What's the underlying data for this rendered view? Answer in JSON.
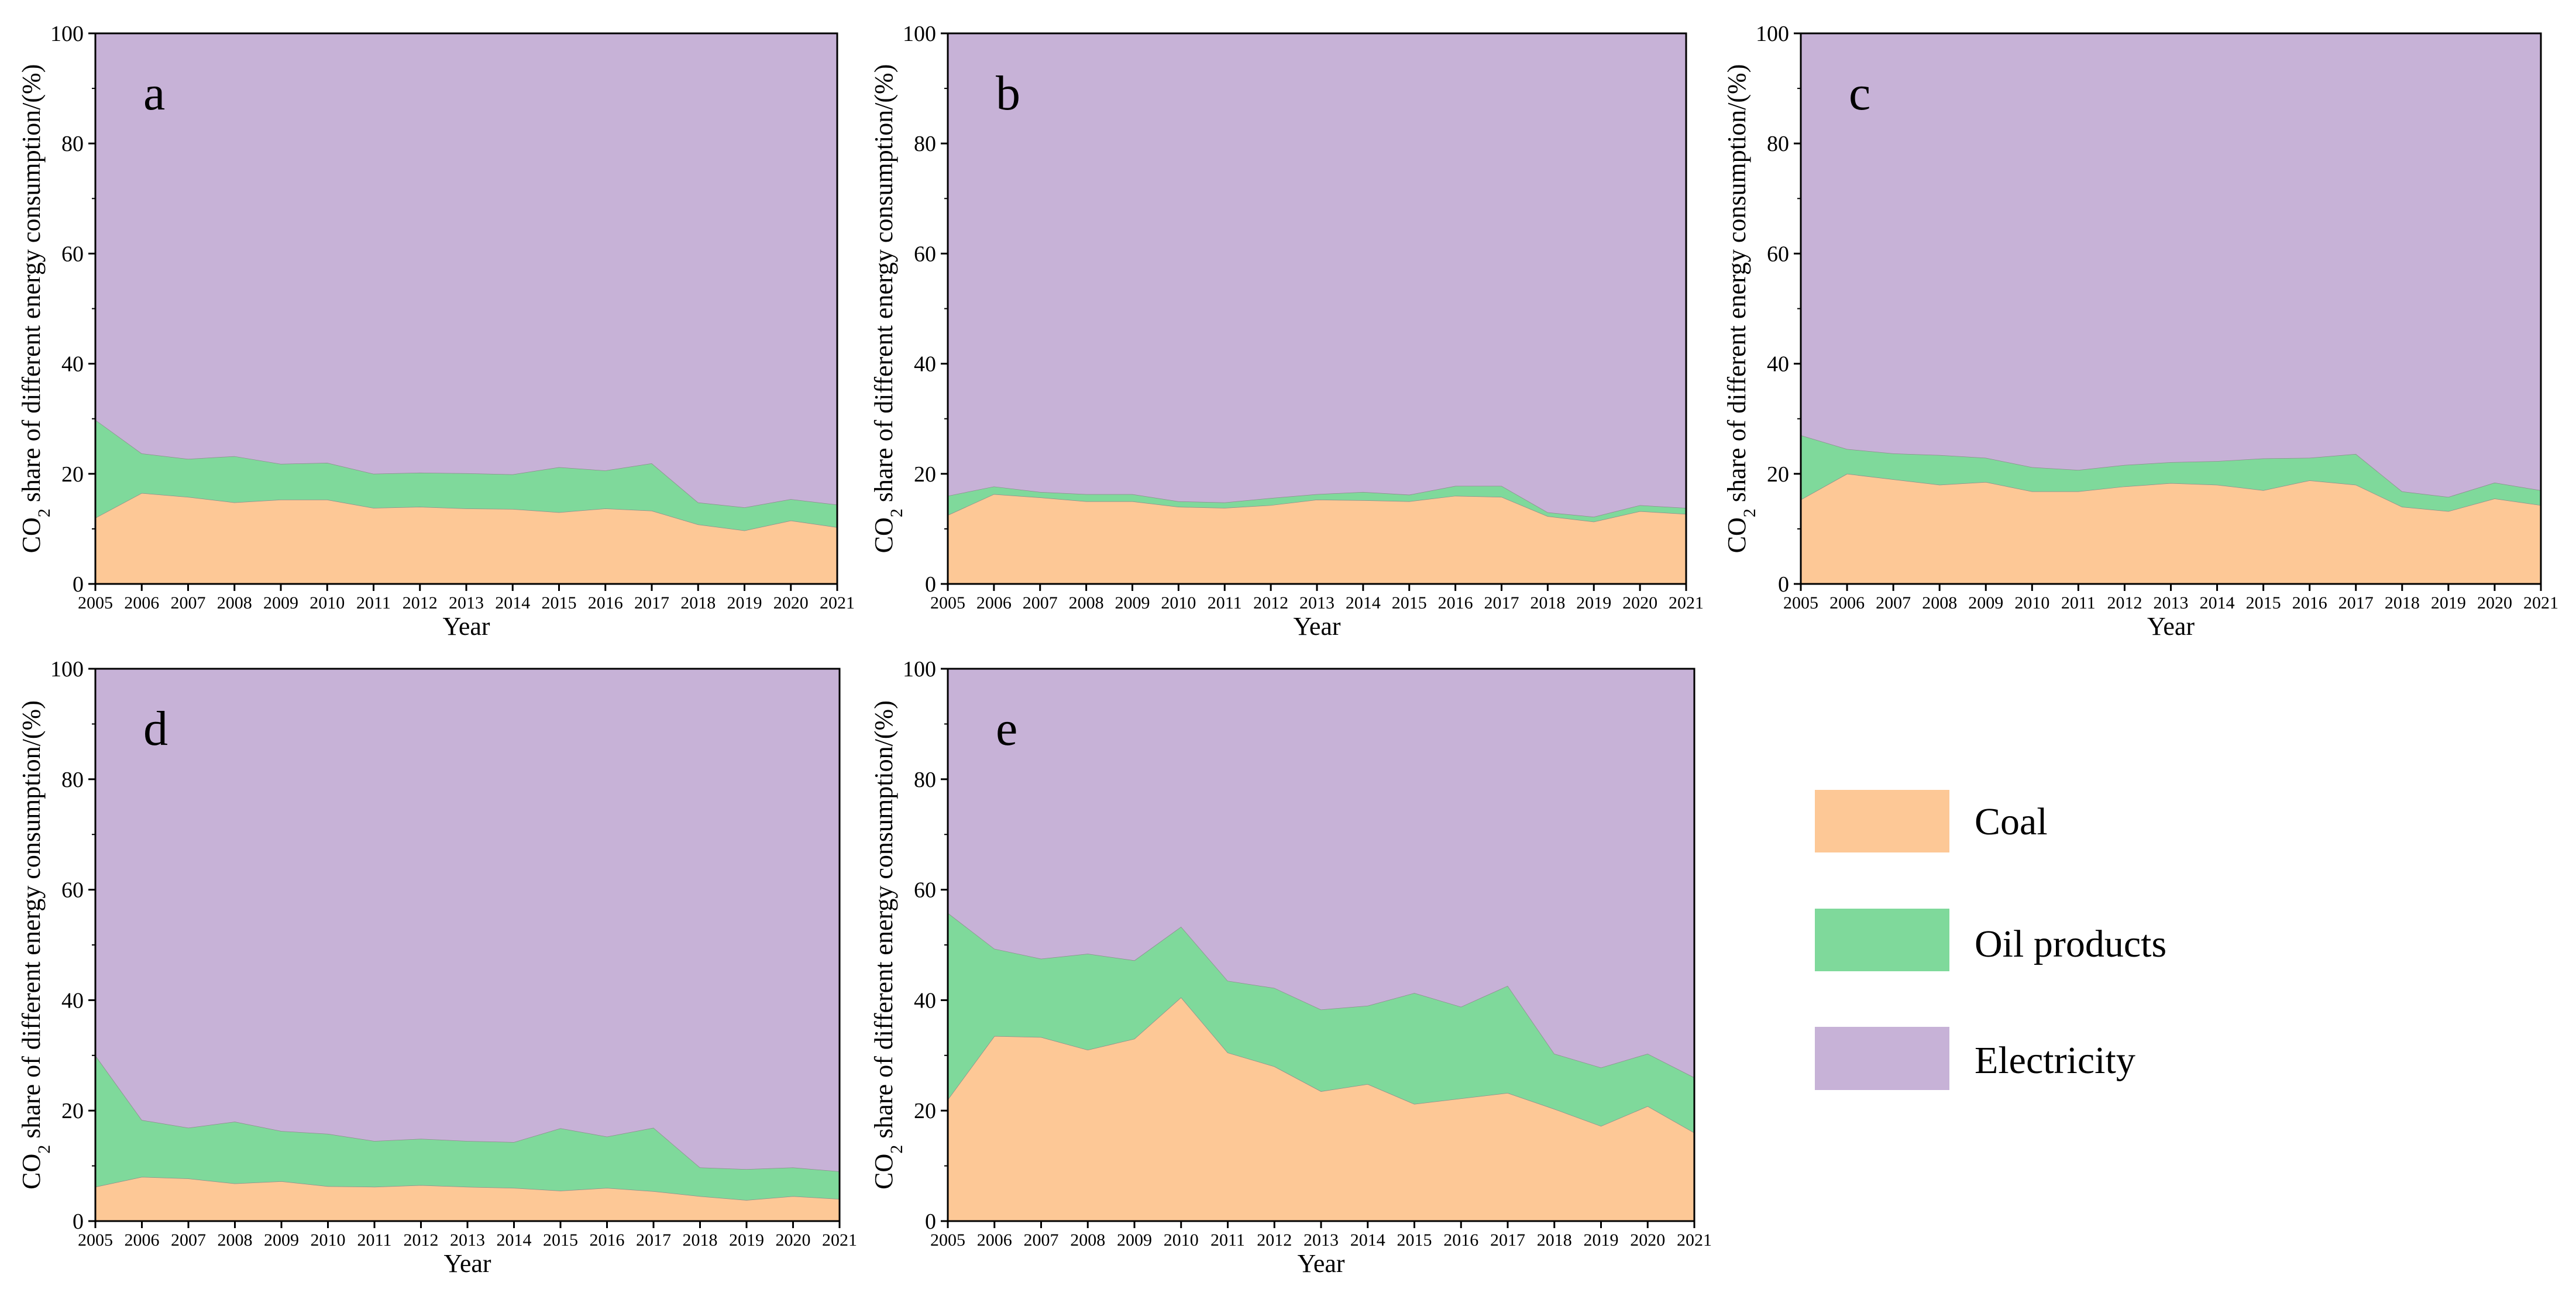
{
  "figure": {
    "legend": [
      {
        "key": "coal",
        "label": "Coal",
        "color": "#fdc896"
      },
      {
        "key": "oil",
        "label": "Oil products",
        "color": "#7fd99b"
      },
      {
        "key": "electricity",
        "label": "Electricity",
        "color": "#c7b2d7"
      }
    ]
  },
  "chart_data": [
    {
      "type": "area",
      "stacked": true,
      "panel_label": "a",
      "xlabel": "Year",
      "ylabel_prefix": "CO",
      "ylabel_sub": "2",
      "ylabel_suffix": " share of different energy consumption/(%)",
      "ylim": [
        0,
        100
      ],
      "yticks": [
        0,
        20,
        40,
        60,
        80,
        100
      ],
      "x": [
        "2005",
        "2006",
        "2007",
        "2008",
        "2009",
        "2010",
        "2011",
        "2012",
        "2013",
        "2014",
        "2015",
        "2016",
        "2017",
        "2018",
        "2019",
        "2020",
        "2021"
      ],
      "series": [
        {
          "name": "Coal",
          "values": [
            12,
            16.5,
            15.8,
            14.8,
            15.3,
            15.3,
            13.8,
            14,
            13.7,
            13.6,
            13,
            13.7,
            13.3,
            10.8,
            9.7,
            11.5,
            10.3
          ]
        },
        {
          "name": "Oil products",
          "values": [
            17.8,
            7.2,
            6.9,
            8.4,
            6.5,
            6.7,
            6.2,
            6.2,
            6.4,
            6.3,
            8.2,
            6.9,
            8.6,
            4,
            4.2,
            3.9,
            4.1
          ]
        },
        {
          "name": "Electricity",
          "values": [
            70.2,
            76.3,
            77.3,
            76.8,
            78.2,
            78,
            80,
            79.8,
            79.9,
            80.1,
            78.8,
            79.4,
            78.1,
            85.2,
            86.1,
            84.6,
            85.6
          ]
        }
      ]
    },
    {
      "type": "area",
      "stacked": true,
      "panel_label": "b",
      "xlabel": "Year",
      "ylabel_prefix": "CO",
      "ylabel_sub": "2",
      "ylabel_suffix": " share of different energy consumption/(%)",
      "ylim": [
        0,
        100
      ],
      "yticks": [
        0,
        20,
        40,
        60,
        80,
        100
      ],
      "x": [
        "2005",
        "2006",
        "2007",
        "2008",
        "2009",
        "2010",
        "2011",
        "2012",
        "2013",
        "2014",
        "2015",
        "2016",
        "2017",
        "2018",
        "2019",
        "2020",
        "2021"
      ],
      "series": [
        {
          "name": "Coal",
          "values": [
            12.5,
            16.3,
            15.7,
            15,
            15,
            14,
            13.8,
            14.3,
            15.3,
            15.2,
            15,
            16,
            15.8,
            12.3,
            11.3,
            13.2,
            12.7
          ]
        },
        {
          "name": "Oil products",
          "values": [
            3.5,
            1.4,
            1,
            1.3,
            1.3,
            1,
            1,
            1.3,
            1,
            1.5,
            1.2,
            1.8,
            2,
            0.7,
            0.9,
            1.1,
            1.1
          ]
        },
        {
          "name": "Electricity",
          "values": [
            84,
            82.3,
            83.3,
            83.7,
            83.7,
            85,
            85.2,
            84.4,
            83.7,
            83.3,
            83.8,
            82.2,
            82.2,
            87,
            87.8,
            85.7,
            86.2
          ]
        }
      ]
    },
    {
      "type": "area",
      "stacked": true,
      "panel_label": "c",
      "xlabel": "Year",
      "ylabel_prefix": "CO",
      "ylabel_sub": "2",
      "ylabel_suffix": " share of different energy consumption/(%)",
      "ylim": [
        0,
        100
      ],
      "yticks": [
        0,
        20,
        40,
        60,
        80,
        100
      ],
      "x": [
        "2005",
        "2006",
        "2007",
        "2008",
        "2009",
        "2010",
        "2011",
        "2012",
        "2013",
        "2014",
        "2015",
        "2016",
        "2017",
        "2018",
        "2019",
        "2020",
        "2021"
      ],
      "series": [
        {
          "name": "Coal",
          "values": [
            15.3,
            20,
            19,
            18,
            18.5,
            16.8,
            16.8,
            17.7,
            18.3,
            18,
            17,
            18.8,
            18,
            14,
            13.2,
            15.5,
            14.3
          ]
        },
        {
          "name": "Oil products",
          "values": [
            11.7,
            4.5,
            4.7,
            5.4,
            4.4,
            4.4,
            3.9,
            3.9,
            3.8,
            4.3,
            5.8,
            4.1,
            5.6,
            2.8,
            2.6,
            2.9,
            2.7
          ]
        },
        {
          "name": "Electricity",
          "values": [
            73,
            75.5,
            76.3,
            76.6,
            77.1,
            78.8,
            79.3,
            78.4,
            77.9,
            77.7,
            77.2,
            77.1,
            76.4,
            83.2,
            84.2,
            81.6,
            83
          ]
        }
      ]
    },
    {
      "type": "area",
      "stacked": true,
      "panel_label": "d",
      "xlabel": "Year",
      "ylabel_prefix": "CO",
      "ylabel_sub": "2",
      "ylabel_suffix": " share of different energy consumption/(%)",
      "ylim": [
        0,
        100
      ],
      "yticks": [
        0,
        20,
        40,
        60,
        80,
        100
      ],
      "x": [
        "2005",
        "2006",
        "2007",
        "2008",
        "2009",
        "2010",
        "2011",
        "2012",
        "2013",
        "2014",
        "2015",
        "2016",
        "2017",
        "2018",
        "2019",
        "2020",
        "2021"
      ],
      "series": [
        {
          "name": "Coal",
          "values": [
            6.2,
            8,
            7.7,
            6.8,
            7.2,
            6.3,
            6.2,
            6.5,
            6.2,
            6,
            5.5,
            6,
            5.4,
            4.5,
            3.8,
            4.5,
            4
          ]
        },
        {
          "name": "Oil products",
          "values": [
            23.8,
            10.3,
            9.2,
            11.2,
            9.1,
            9.5,
            8.3,
            8.4,
            8.3,
            8.3,
            11.3,
            9.3,
            11.5,
            5.2,
            5.6,
            5.2,
            5
          ]
        },
        {
          "name": "Electricity",
          "values": [
            70,
            81.7,
            83.1,
            82,
            83.7,
            84.2,
            85.5,
            85.1,
            85.5,
            85.7,
            83.2,
            84.7,
            83.1,
            90.3,
            90.6,
            90.3,
            91
          ]
        }
      ]
    },
    {
      "type": "area",
      "stacked": true,
      "panel_label": "e",
      "xlabel": "Year",
      "ylabel_prefix": "CO",
      "ylabel_sub": "2",
      "ylabel_suffix": " share of different energy consumption/(%)",
      "ylim": [
        0,
        100
      ],
      "yticks": [
        0,
        20,
        40,
        60,
        80,
        100
      ],
      "x": [
        "2005",
        "2006",
        "2007",
        "2008",
        "2009",
        "2010",
        "2011",
        "2012",
        "2013",
        "2014",
        "2015",
        "2016",
        "2017",
        "2018",
        "2019",
        "2020",
        "2021"
      ],
      "series": [
        {
          "name": "Coal",
          "values": [
            22,
            33.5,
            33.3,
            31,
            33,
            40.5,
            30.5,
            28,
            23.5,
            24.8,
            21.2,
            22.2,
            23.2,
            20.3,
            17.2,
            20.8,
            16
          ]
        },
        {
          "name": "Oil products",
          "values": [
            33.8,
            15.8,
            14.2,
            17.4,
            14.2,
            12.8,
            13,
            14.2,
            14.8,
            14.2,
            20.1,
            16.6,
            19.4,
            10,
            10.6,
            9.5,
            10
          ]
        },
        {
          "name": "Electricity",
          "values": [
            44.2,
            50.7,
            52.5,
            51.6,
            52.8,
            46.7,
            56.5,
            57.8,
            61.7,
            61,
            58.7,
            61.2,
            57.4,
            69.7,
            72.2,
            69.7,
            74
          ]
        }
      ]
    }
  ]
}
